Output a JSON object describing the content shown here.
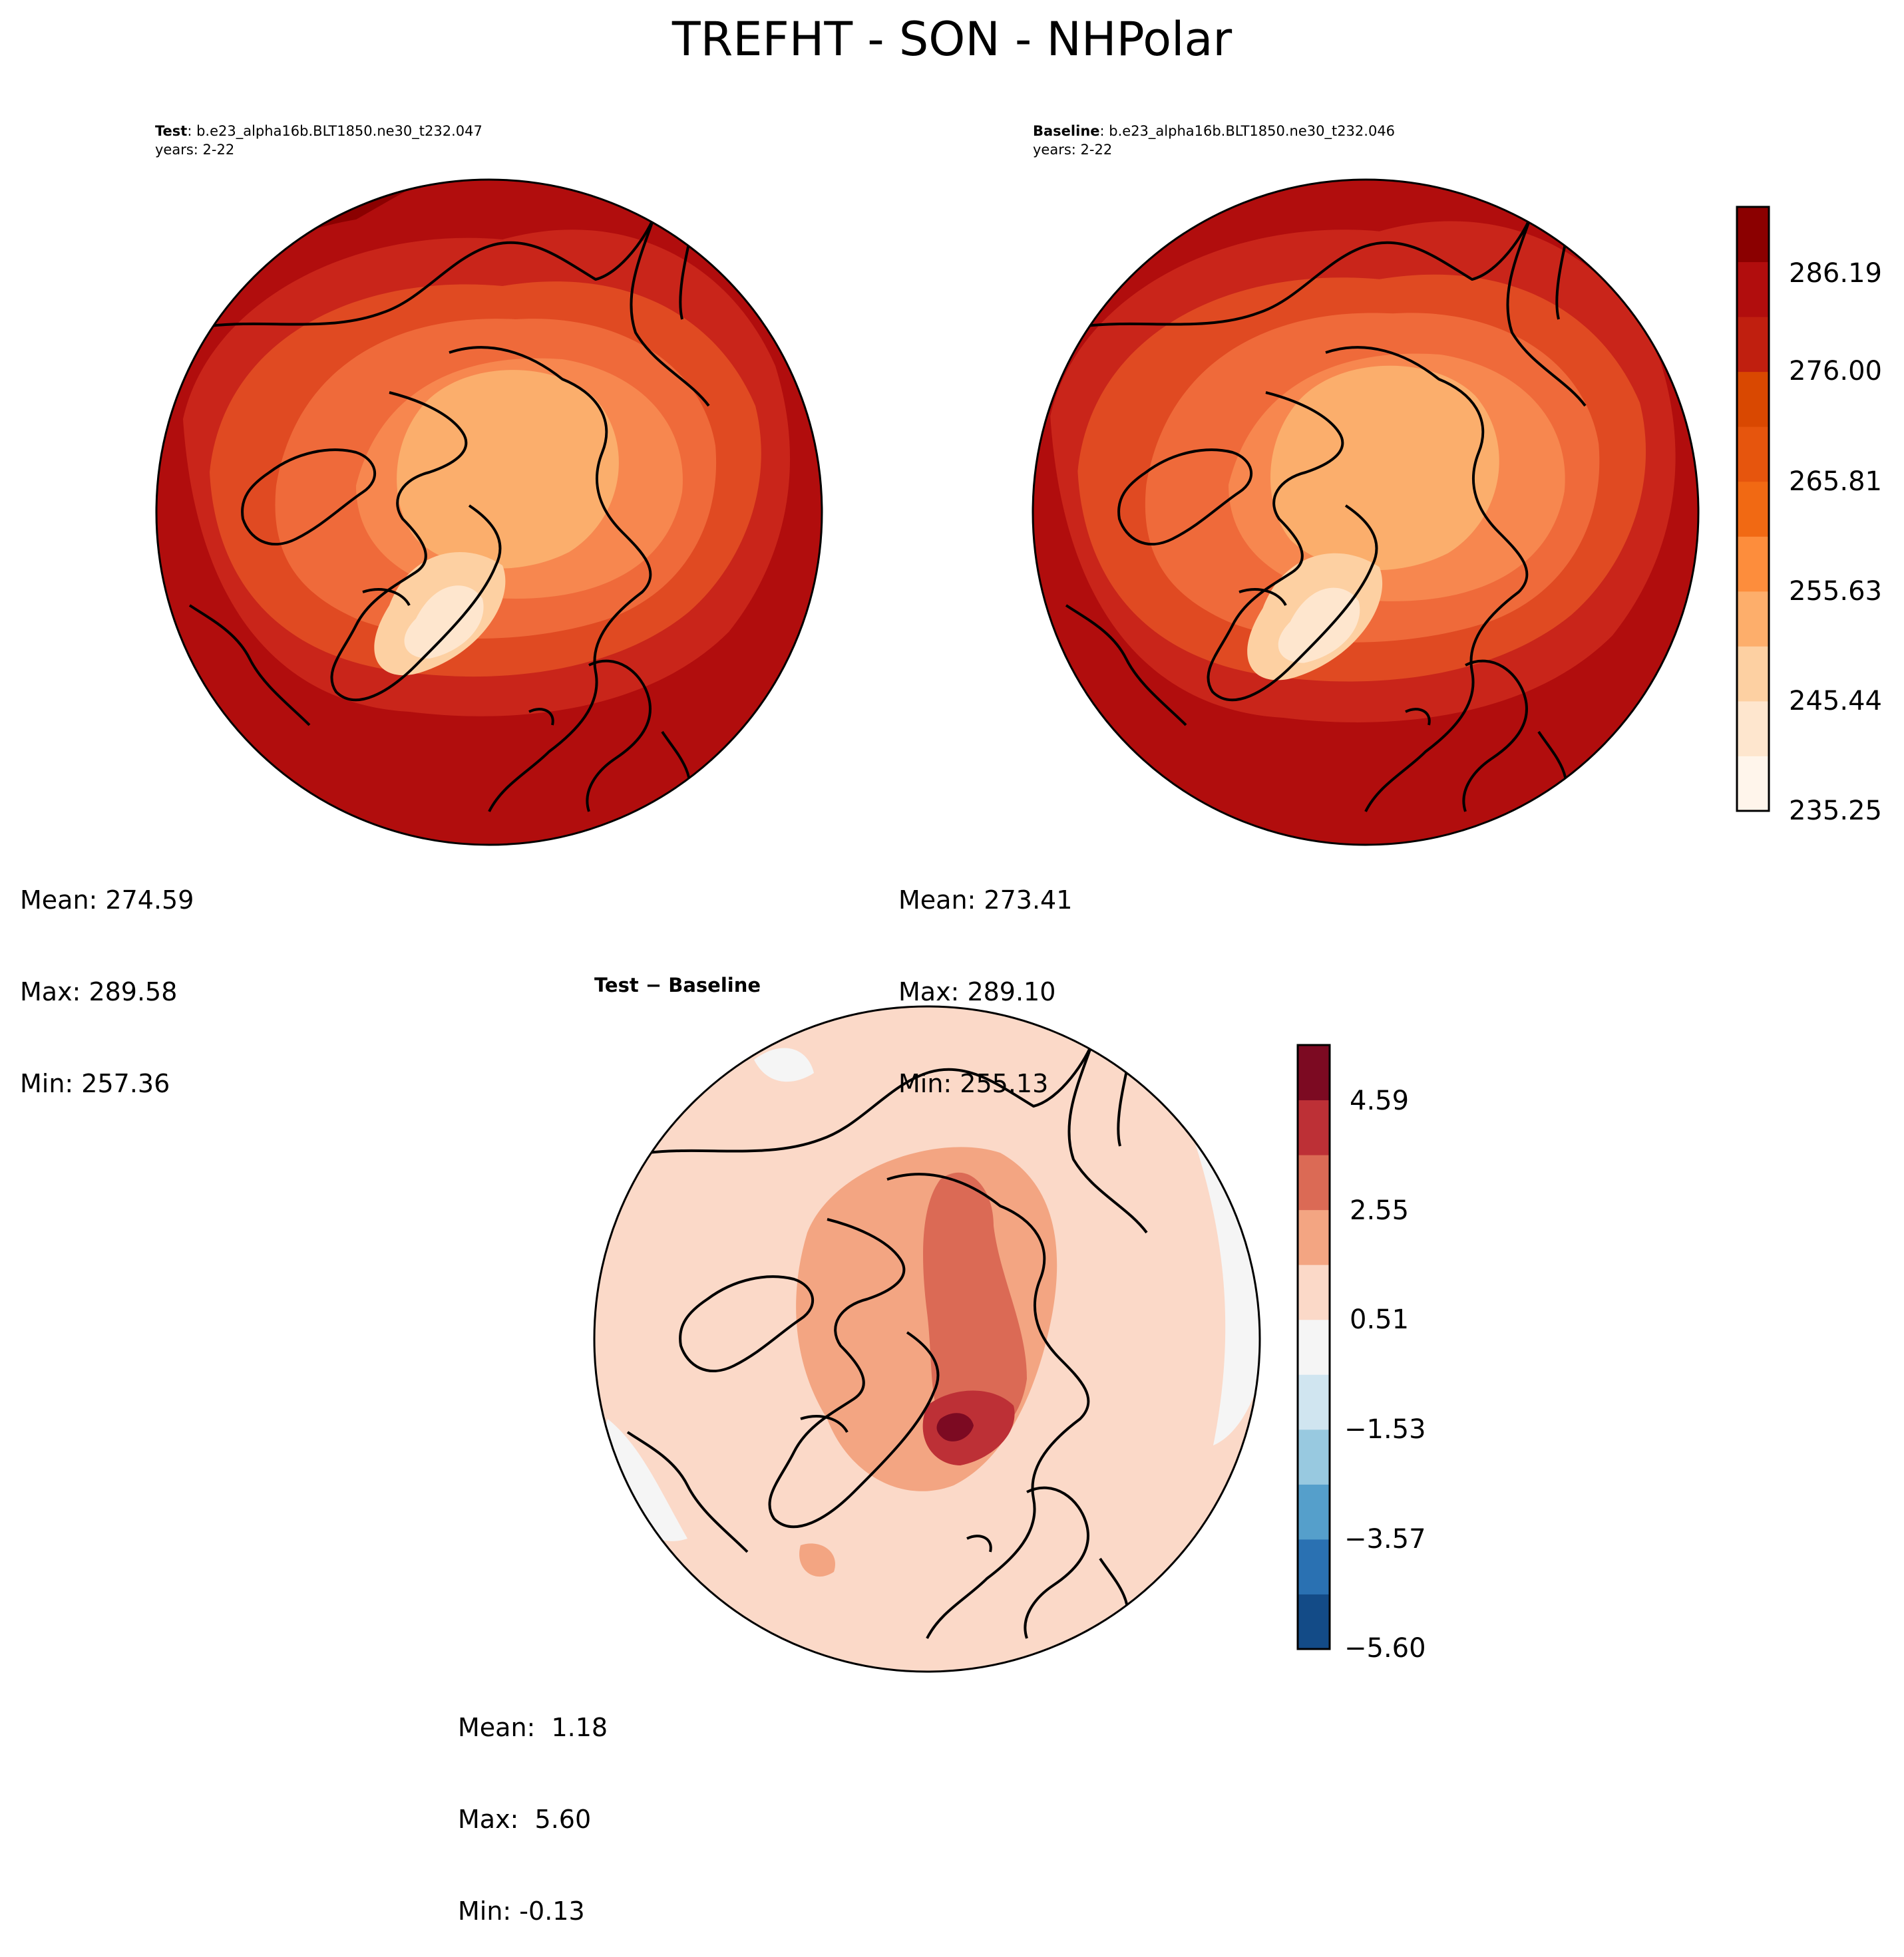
{
  "figure": {
    "title": "TREFHT - SON - NHPolar"
  },
  "panels": {
    "test": {
      "label": "Test",
      "case": ": b.e23_alpha16b.BLT1850.ne30_t232.047",
      "years": "years: 2-22",
      "stats": {
        "mean": "Mean: 274.59",
        "max": "Max: 289.58",
        "min": "Min: 257.36"
      }
    },
    "baseline": {
      "label": "Baseline",
      "case": ": b.e23_alpha16b.BLT1850.ne30_t232.046",
      "years": "years: 2-22",
      "stats": {
        "mean": "Mean: 273.41",
        "max": "Max: 289.10",
        "min": "Min: 255.13"
      }
    },
    "diff": {
      "title": "Test − Baseline",
      "stats": {
        "mean": "Mean:  1.18",
        "max": "Max:  5.60",
        "min": "Min: -0.13"
      }
    }
  },
  "colorbars": {
    "main": {
      "ticks": [
        "286.19",
        "276.00",
        "265.81",
        "255.63",
        "245.44",
        "235.25"
      ],
      "colors": [
        "#fff5eb",
        "#fee6ce",
        "#fdd0a2",
        "#fdae6b",
        "#fd8d3c",
        "#f16913",
        "#e6550d",
        "#d94801",
        "#c01f0f",
        "#b10d0d",
        "#8b0000"
      ]
    },
    "diff": {
      "ticks": [
        "4.59",
        "2.55",
        "0.51",
        "−1.53",
        "−3.57",
        "−5.60"
      ],
      "colors": [
        "#134b87",
        "#2a71b2",
        "#559fcb",
        "#98c9e0",
        "#d0e5f0",
        "#f5f5f5",
        "#fbd9c8",
        "#f3a582",
        "#db6a55",
        "#bd3036",
        "#7c0a22"
      ]
    }
  }
}
